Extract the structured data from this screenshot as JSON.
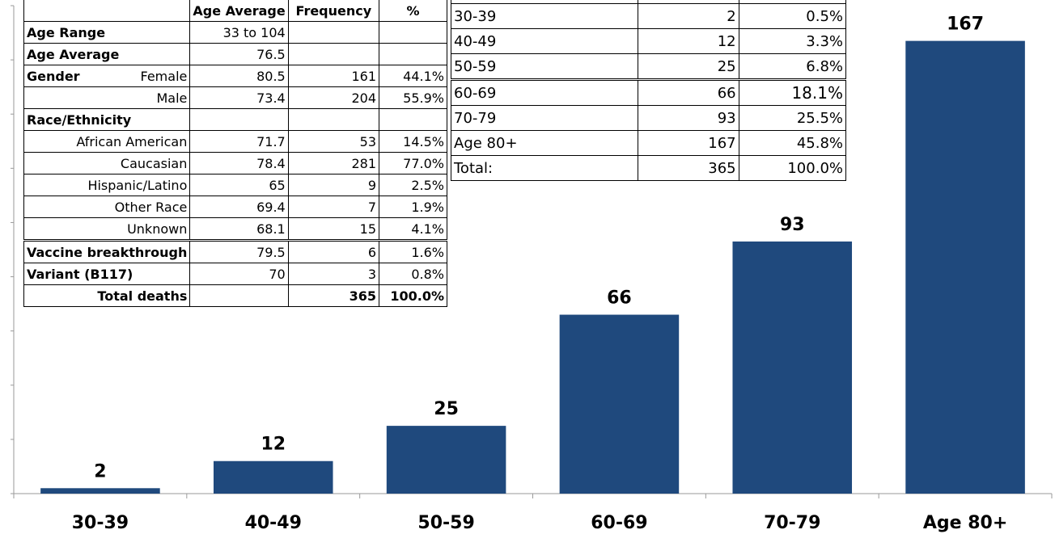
{
  "chart_data": {
    "type": "bar",
    "categories": [
      "30-39",
      "40-49",
      "50-59",
      "60-69",
      "70-79",
      "Age 80+"
    ],
    "values": [
      2,
      12,
      25,
      66,
      93,
      167
    ],
    "title": "",
    "xlabel": "",
    "ylabel": "",
    "ylim": [
      0,
      180
    ],
    "bar_color": "#1f497d",
    "data_labels": true,
    "grid": false
  },
  "age_table": {
    "rows": [
      {
        "range": "30-39",
        "count": "2",
        "pct": "0.5%"
      },
      {
        "range": "40-49",
        "count": "12",
        "pct": "3.3%"
      },
      {
        "range": "50-59",
        "count": "25",
        "pct": "6.8%"
      },
      {
        "range": "60-69",
        "count": "66",
        "pct": "18.1%"
      },
      {
        "range": "70-79",
        "count": "93",
        "pct": "25.5%"
      },
      {
        "range": "Age 80+",
        "count": "167",
        "pct": "45.8%"
      },
      {
        "range": "Total:",
        "count": "365",
        "pct": "100.0%"
      }
    ]
  },
  "summary_table": {
    "headers": {
      "age_average": "Age Average",
      "frequency": "Frequency",
      "pct": "%"
    },
    "age_range": {
      "label": "Age Range",
      "value": "33 to 104"
    },
    "age_average": {
      "label": "Age Average",
      "value": "76.5"
    },
    "gender": {
      "label": "Gender",
      "female": {
        "label": "Female",
        "avg": "80.5",
        "freq": "161",
        "pct": "44.1%"
      },
      "male": {
        "label": "Male",
        "avg": "73.4",
        "freq": "204",
        "pct": "55.9%"
      }
    },
    "race_label": "Race/Ethnicity",
    "race": [
      {
        "label": "African American",
        "avg": "71.7",
        "freq": "53",
        "pct": "14.5%"
      },
      {
        "label": "Caucasian",
        "avg": "78.4",
        "freq": "281",
        "pct": "77.0%"
      },
      {
        "label": "Hispanic/Latino",
        "avg": "65",
        "freq": "9",
        "pct": "2.5%"
      },
      {
        "label": "Other Race",
        "avg": "69.4",
        "freq": "7",
        "pct": "1.9%"
      },
      {
        "label": "Unknown",
        "avg": "68.1",
        "freq": "15",
        "pct": "4.1%"
      }
    ],
    "breakthrough": {
      "label": "Vaccine breakthrough",
      "avg": "79.5",
      "freq": "6",
      "pct": "1.6%"
    },
    "variant": {
      "label": "Variant (B117)",
      "avg": "70",
      "freq": "3",
      "pct": "0.8%"
    },
    "total": {
      "label": "Total deaths",
      "freq": "365",
      "pct": "100.0%"
    }
  }
}
